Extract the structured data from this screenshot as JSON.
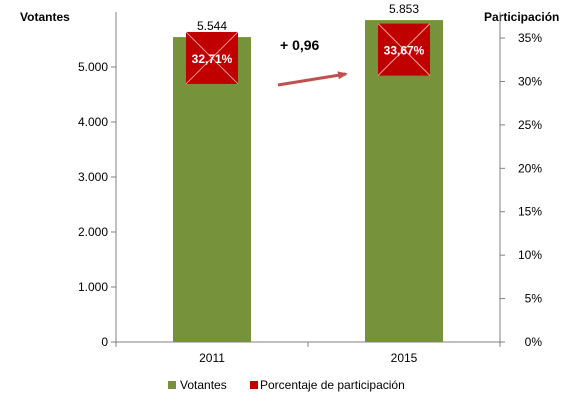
{
  "chart_data": {
    "type": "bar",
    "categories": [
      "2011",
      "2015"
    ],
    "series": [
      {
        "name": "Votantes",
        "axis": "left",
        "kind": "bar",
        "values": [
          5544,
          5853
        ],
        "labels": [
          "5.544",
          "5.853"
        ],
        "color": "#76933C"
      },
      {
        "name": "Porcentaje de participación",
        "axis": "right",
        "kind": "marker",
        "values": [
          32.71,
          33.67
        ],
        "labels": [
          "32,71%",
          "33,67%"
        ],
        "color": "#C00000"
      }
    ],
    "left_axis": {
      "title": "Votantes",
      "min": 0,
      "max": 6000,
      "ticks": [
        0,
        1000,
        2000,
        3000,
        4000,
        5000
      ],
      "tick_labels": [
        "0",
        "1.000",
        "2.000",
        "3.000",
        "4.000",
        "5.000"
      ]
    },
    "right_axis": {
      "title": "Participación",
      "min": 0,
      "max": 38,
      "ticks": [
        0,
        5,
        10,
        15,
        20,
        25,
        30,
        35
      ],
      "tick_labels": [
        "0%",
        "5%",
        "10%",
        "15%",
        "20%",
        "25%",
        "30%",
        "35%"
      ]
    },
    "annotation": {
      "text": "+ 0,96",
      "arrow_color": "#C0504D"
    },
    "legend_position": "bottom",
    "grid": false
  }
}
